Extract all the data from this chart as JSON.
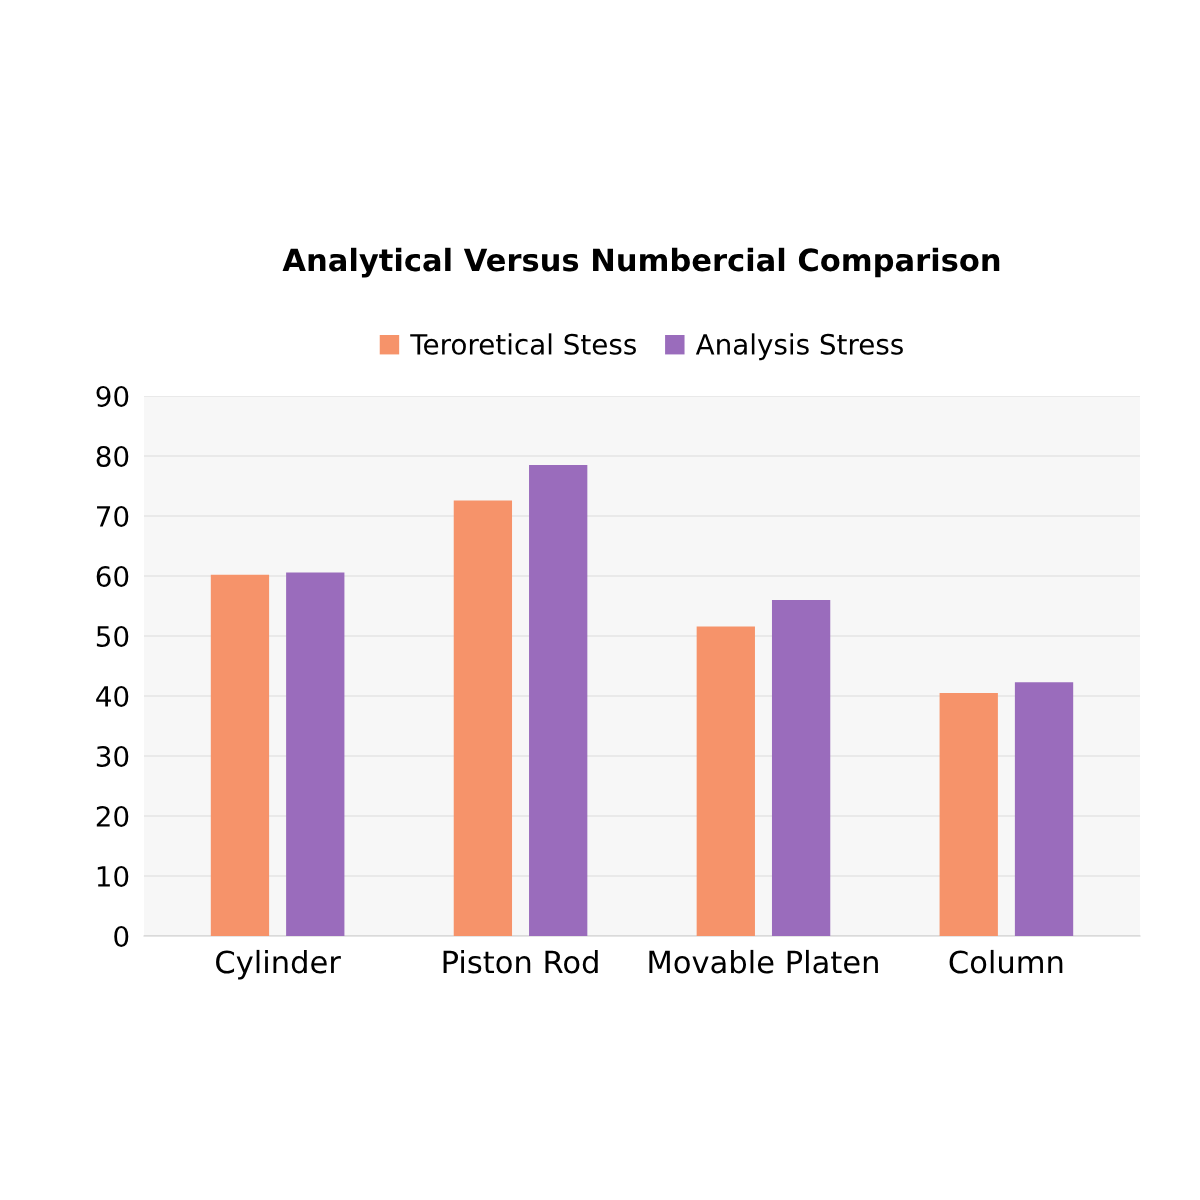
{
  "chart_data": {
    "type": "bar",
    "title": "Analytical Versus Numbercial Comparison",
    "categories": [
      "Cylinder",
      "Piston Rod",
      "Movable Platen",
      "Column"
    ],
    "series": [
      {
        "name": "Teroretical Stess",
        "color": "#f6936a",
        "values": [
          60.2,
          72.6,
          51.6,
          40.5
        ]
      },
      {
        "name": "Analysis Stress",
        "color": "#9a6cbc",
        "values": [
          60.6,
          78.5,
          56,
          42.3
        ]
      }
    ],
    "ylim": [
      0,
      90
    ],
    "yticks": [
      0,
      10,
      20,
      30,
      40,
      50,
      60,
      70,
      80,
      90
    ],
    "grid": "y",
    "legend": "top"
  }
}
